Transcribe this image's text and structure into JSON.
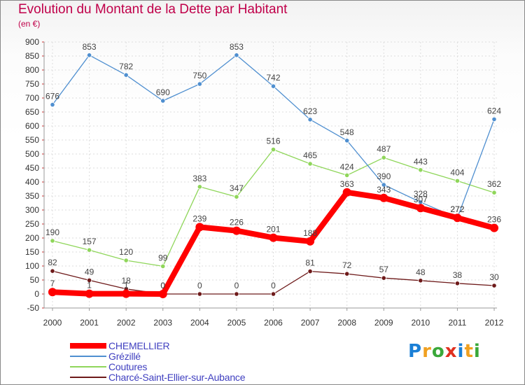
{
  "chart_data": {
    "type": "line",
    "title": "Evolution du Montant de la Dette par Habitant",
    "subtitle": "(en €)",
    "x": [
      "2000",
      "2001",
      "2002",
      "2003",
      "2004",
      "2005",
      "2006",
      "2007",
      "2008",
      "2009",
      "2010",
      "2011",
      "2012"
    ],
    "ylim": [
      -50,
      900
    ],
    "yticks": [
      -50,
      0,
      50,
      100,
      150,
      200,
      250,
      300,
      350,
      400,
      450,
      500,
      550,
      600,
      650,
      700,
      750,
      800,
      850,
      900
    ],
    "grid": true,
    "legend_position": "bottom-left",
    "series": [
      {
        "name": "CHEMELLIER",
        "color": "#ff0000",
        "values": [
          7,
          1,
          1,
          0,
          239,
          226,
          201,
          188,
          363,
          343,
          307,
          272,
          236
        ]
      },
      {
        "name": "Grézillé",
        "color": "#4f8fd0",
        "values": [
          676,
          853,
          782,
          690,
          750,
          853,
          742,
          623,
          548,
          390,
          328,
          272,
          624
        ]
      },
      {
        "name": "Coutures",
        "color": "#8fd65a",
        "values": [
          190,
          157,
          120,
          99,
          383,
          347,
          516,
          465,
          424,
          487,
          443,
          404,
          362
        ]
      },
      {
        "name": "Charcé-Saint-Ellier-sur-Aubance",
        "color": "#6e1a1a",
        "values": [
          82,
          49,
          18,
          0,
          0,
          0,
          0,
          81,
          72,
          57,
          48,
          38,
          30
        ]
      }
    ]
  },
  "brand": {
    "letters": [
      "P",
      "r",
      "o",
      "x",
      "i",
      "t",
      "i"
    ],
    "colors": [
      "#1a7fd6",
      "#f0a020",
      "#3aa83a",
      "#e03020",
      "#1a7fd6",
      "#f0a020",
      "#3aa83a"
    ]
  }
}
